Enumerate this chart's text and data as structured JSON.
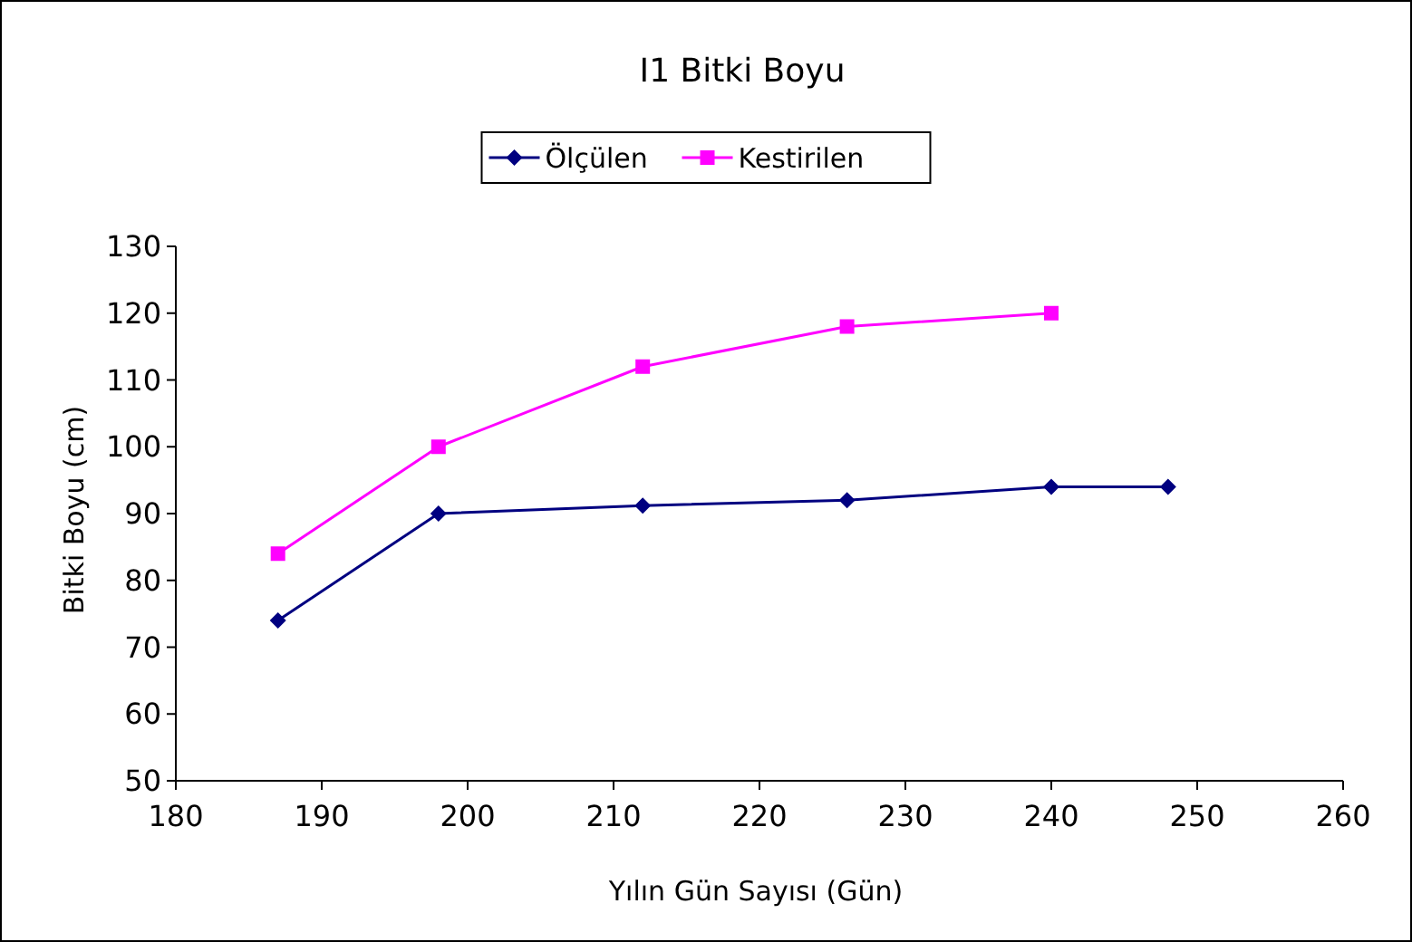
{
  "chart_data": {
    "type": "line",
    "title": "I1 Bitki Boyu",
    "xlabel": "Yılın Gün Sayısı (Gün)",
    "ylabel": "Bitki Boyu (cm)",
    "xlim": [
      180,
      260
    ],
    "xticks": [
      180,
      190,
      200,
      210,
      220,
      230,
      240,
      250,
      260
    ],
    "ylim": [
      50,
      130
    ],
    "yticks": [
      50,
      60,
      70,
      80,
      90,
      100,
      110,
      120,
      130
    ],
    "grid": false,
    "legend": "top",
    "line_style": "solid",
    "series": [
      {
        "name": "Ölçülen",
        "color": "#000080",
        "marker": "diamond",
        "x": [
          187,
          198,
          212,
          226,
          240,
          248
        ],
        "values": [
          74,
          90,
          91.2,
          92,
          94,
          94
        ]
      },
      {
        "name": "Kestirilen",
        "color": "#ff00ff",
        "marker": "square",
        "x": [
          187,
          198,
          212,
          226,
          240
        ],
        "values": [
          84,
          100,
          112,
          118,
          120
        ]
      }
    ]
  }
}
